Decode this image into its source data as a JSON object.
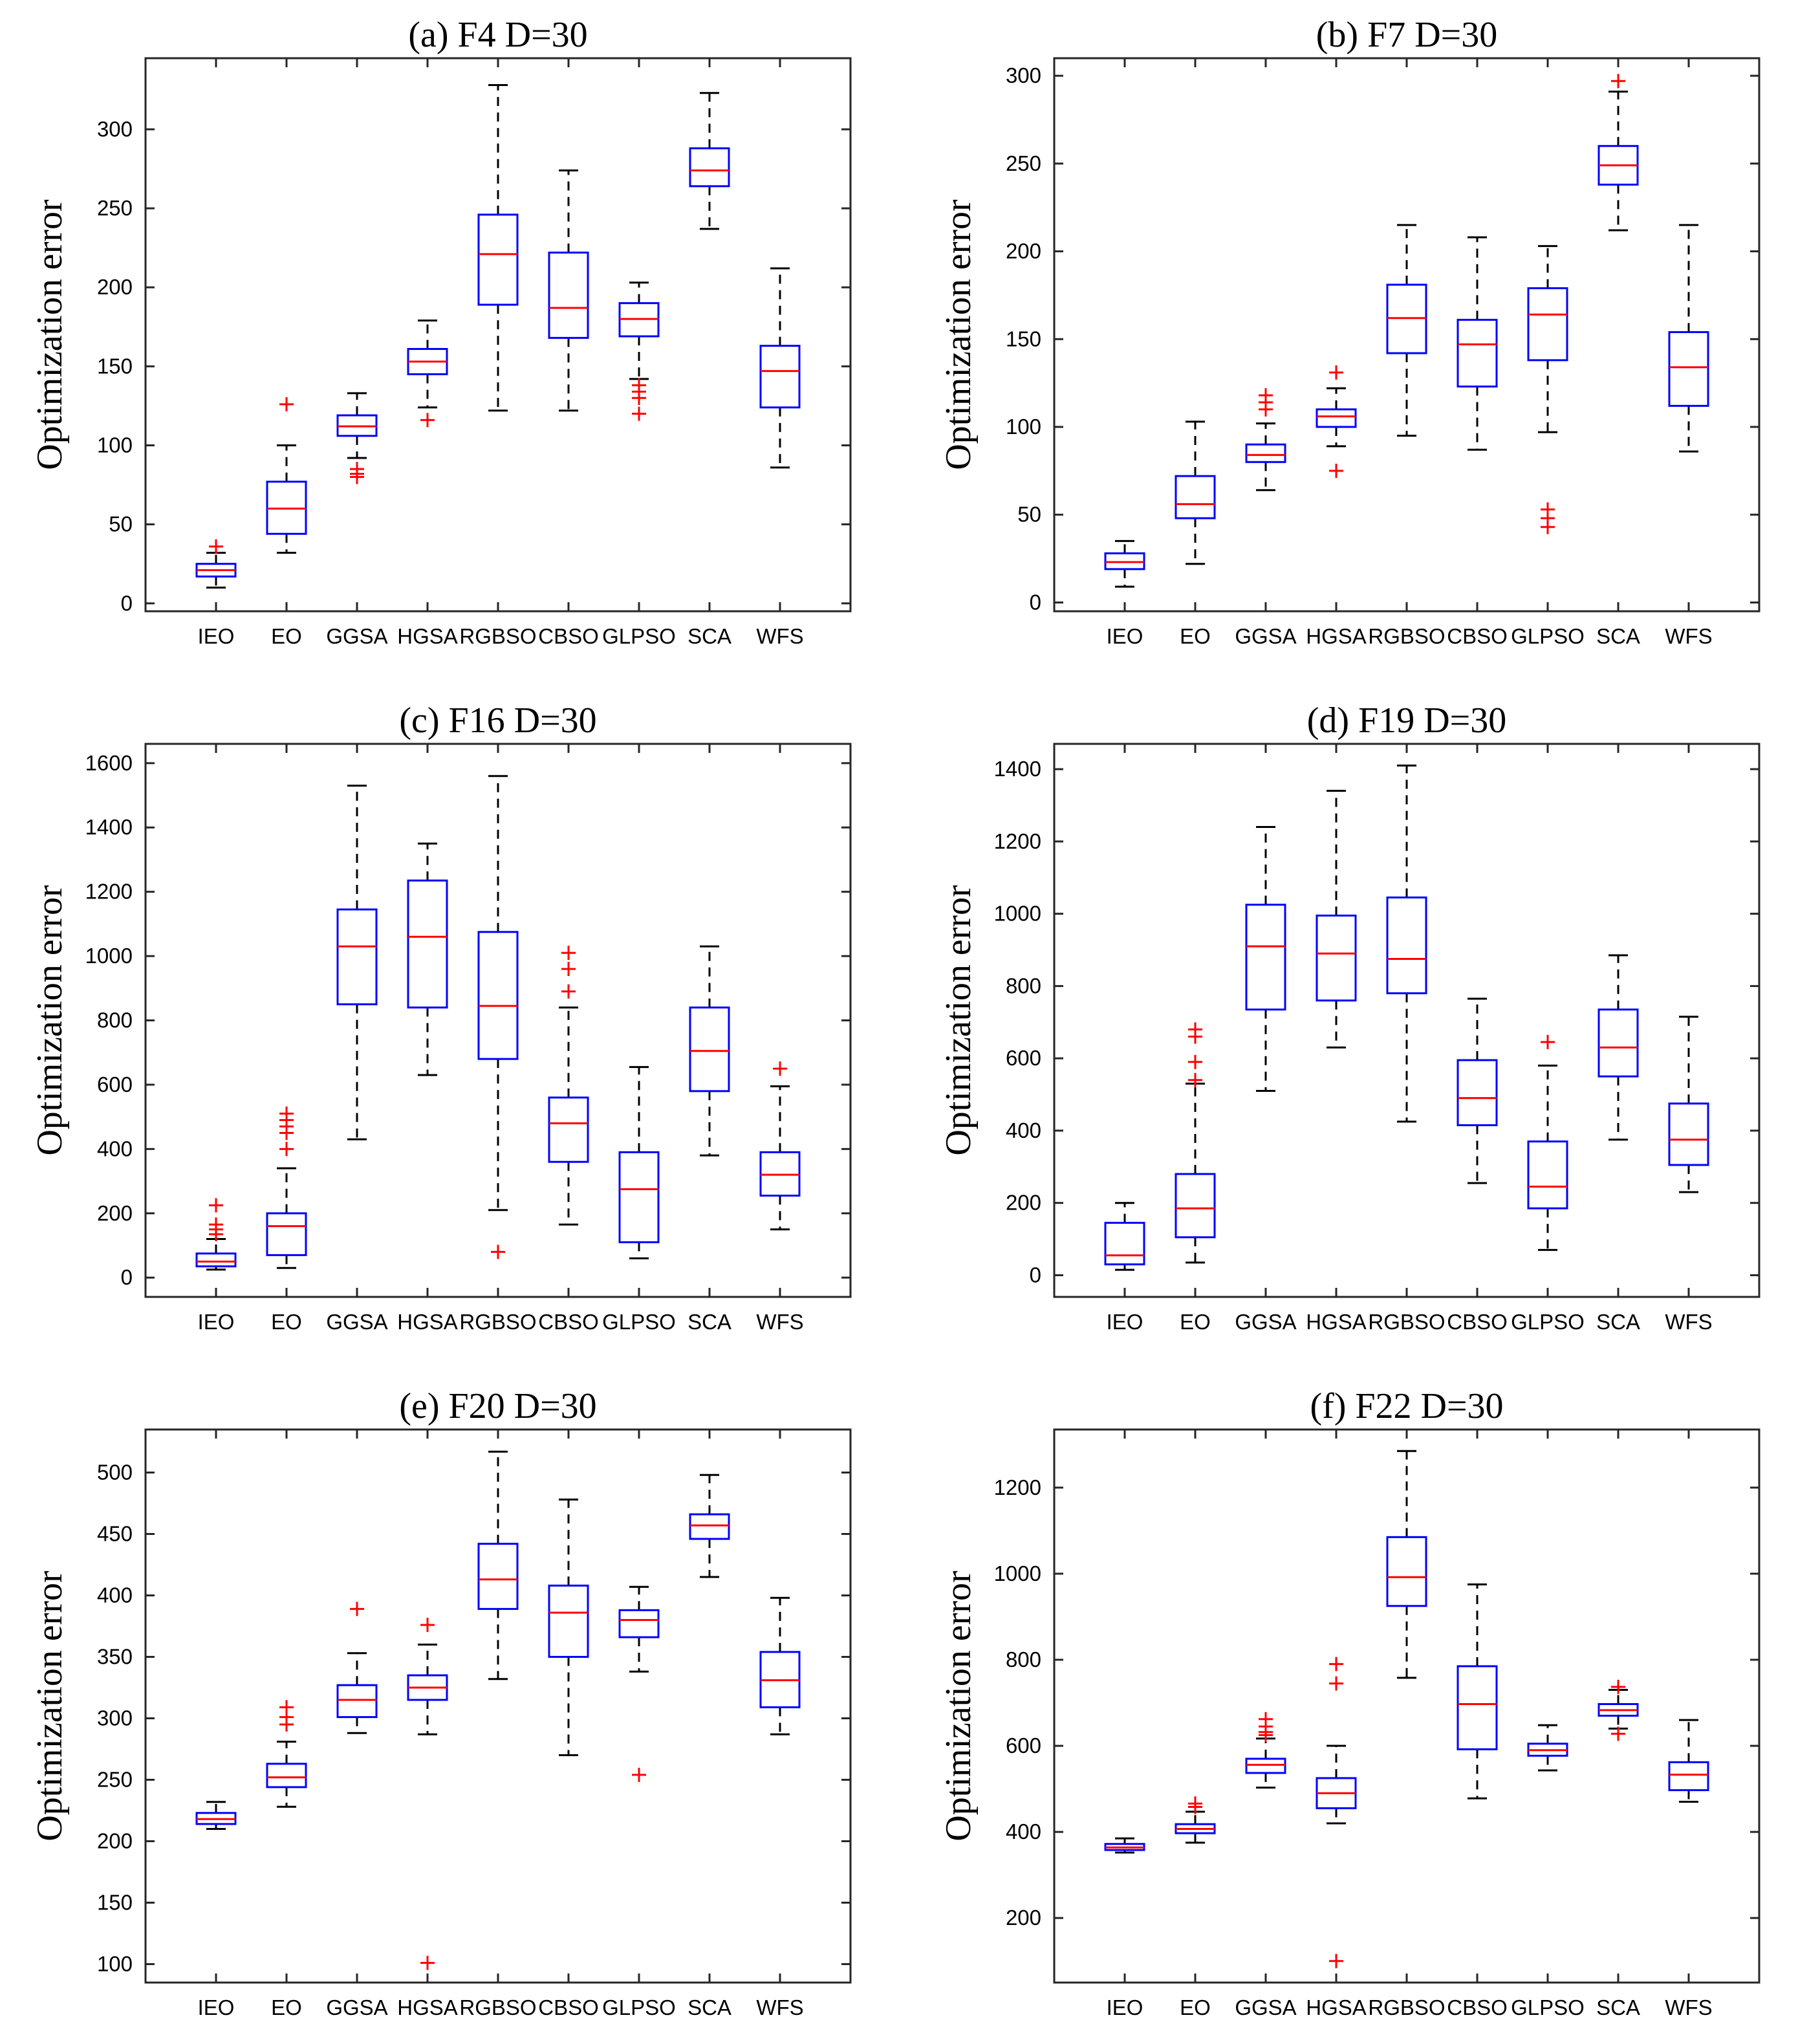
{
  "chart_data": [
    {
      "type": "boxplot",
      "title": "(a)  F4 D=30",
      "ylabel": "Optimization error",
      "xlabel": "",
      "ylim": [
        -5,
        345
      ],
      "yticks": [
        0,
        50,
        100,
        150,
        200,
        250,
        300
      ],
      "categories": [
        "IEO",
        "EO",
        "GGSA",
        "HGSA",
        "RGBSO",
        "CBSO",
        "GLPSO",
        "SCA",
        "WFS"
      ],
      "boxes": [
        {
          "min": 10,
          "q1": 17,
          "median": 21,
          "q3": 25,
          "max": 32,
          "outliers": [
            36
          ]
        },
        {
          "min": 32,
          "q1": 44,
          "median": 60,
          "q3": 77,
          "max": 100,
          "outliers": [
            126
          ]
        },
        {
          "min": 92,
          "q1": 106,
          "median": 112,
          "q3": 119,
          "max": 133,
          "outliers": [
            80,
            82,
            85
          ]
        },
        {
          "min": 124,
          "q1": 145,
          "median": 153,
          "q3": 161,
          "max": 179,
          "outliers": [
            116
          ]
        },
        {
          "min": 122,
          "q1": 189,
          "median": 221,
          "q3": 246,
          "max": 328,
          "outliers": []
        },
        {
          "min": 122,
          "q1": 168,
          "median": 187,
          "q3": 222,
          "max": 274,
          "outliers": []
        },
        {
          "min": 142,
          "q1": 169,
          "median": 180,
          "q3": 190,
          "max": 203,
          "outliers": [
            120,
            130,
            134,
            138
          ]
        },
        {
          "min": 237,
          "q1": 264,
          "median": 274,
          "q3": 288,
          "max": 323,
          "outliers": []
        },
        {
          "min": 86,
          "q1": 124,
          "median": 147,
          "q3": 163,
          "max": 212,
          "outliers": []
        }
      ]
    },
    {
      "type": "boxplot",
      "title": "(b)  F7 D=30",
      "ylabel": "Optimization error",
      "xlabel": "",
      "ylim": [
        -5,
        310
      ],
      "yticks": [
        0,
        50,
        100,
        150,
        200,
        250,
        300
      ],
      "categories": [
        "IEO",
        "EO",
        "GGSA",
        "HGSA",
        "RGBSO",
        "CBSO",
        "GLPSO",
        "SCA",
        "WFS"
      ],
      "boxes": [
        {
          "min": 9,
          "q1": 19,
          "median": 23,
          "q3": 28,
          "max": 35,
          "outliers": []
        },
        {
          "min": 22,
          "q1": 48,
          "median": 56,
          "q3": 72,
          "max": 103,
          "outliers": []
        },
        {
          "min": 64,
          "q1": 80,
          "median": 84,
          "q3": 90,
          "max": 102,
          "outliers": [
            110,
            114,
            118
          ]
        },
        {
          "min": 89,
          "q1": 100,
          "median": 106,
          "q3": 110,
          "max": 122,
          "outliers": [
            75,
            131
          ]
        },
        {
          "min": 95,
          "q1": 142,
          "median": 162,
          "q3": 181,
          "max": 215,
          "outliers": []
        },
        {
          "min": 87,
          "q1": 123,
          "median": 147,
          "q3": 161,
          "max": 208,
          "outliers": []
        },
        {
          "min": 97,
          "q1": 138,
          "median": 164,
          "q3": 179,
          "max": 203,
          "outliers": [
            43,
            48,
            53
          ]
        },
        {
          "min": 212,
          "q1": 238,
          "median": 249,
          "q3": 260,
          "max": 291,
          "outliers": [
            297
          ]
        },
        {
          "min": 86,
          "q1": 112,
          "median": 134,
          "q3": 154,
          "max": 215,
          "outliers": []
        }
      ]
    },
    {
      "type": "boxplot",
      "title": "(c)  F16 D=30",
      "ylabel": "Optimization error",
      "xlabel": "",
      "ylim": [
        -60,
        1660
      ],
      "yticks": [
        0,
        200,
        400,
        600,
        800,
        1000,
        1200,
        1400,
        1600
      ],
      "categories": [
        "IEO",
        "EO",
        "GGSA",
        "HGSA",
        "RGBSO",
        "CBSO",
        "GLPSO",
        "SCA",
        "WFS"
      ],
      "boxes": [
        {
          "min": 25,
          "q1": 35,
          "median": 50,
          "q3": 75,
          "max": 120,
          "outliers": [
            135,
            150,
            165,
            225
          ]
        },
        {
          "min": 30,
          "q1": 70,
          "median": 160,
          "q3": 200,
          "max": 340,
          "outliers": [
            400,
            450,
            470,
            490,
            510
          ]
        },
        {
          "min": 430,
          "q1": 850,
          "median": 1030,
          "q3": 1145,
          "max": 1530,
          "outliers": []
        },
        {
          "min": 630,
          "q1": 840,
          "median": 1060,
          "q3": 1235,
          "max": 1350,
          "outliers": []
        },
        {
          "min": 210,
          "q1": 680,
          "median": 845,
          "q3": 1075,
          "max": 1560,
          "outliers": [
            80
          ]
        },
        {
          "min": 165,
          "q1": 360,
          "median": 480,
          "q3": 560,
          "max": 840,
          "outliers": [
            890,
            960,
            1010
          ]
        },
        {
          "min": 60,
          "q1": 110,
          "median": 275,
          "q3": 390,
          "max": 655,
          "outliers": []
        },
        {
          "min": 380,
          "q1": 580,
          "median": 705,
          "q3": 840,
          "max": 1030,
          "outliers": []
        },
        {
          "min": 150,
          "q1": 255,
          "median": 320,
          "q3": 390,
          "max": 595,
          "outliers": [
            650
          ]
        }
      ]
    },
    {
      "type": "boxplot",
      "title": "(d)  F19 D=30",
      "ylabel": "Optimization error",
      "xlabel": "",
      "ylim": [
        -60,
        1470
      ],
      "yticks": [
        0,
        200,
        400,
        600,
        800,
        1000,
        1200,
        1400
      ],
      "categories": [
        "IEO",
        "EO",
        "GGSA",
        "HGSA",
        "RGBSO",
        "CBSO",
        "GLPSO",
        "SCA",
        "WFS"
      ],
      "boxes": [
        {
          "min": 15,
          "q1": 30,
          "median": 55,
          "q3": 145,
          "max": 200,
          "outliers": []
        },
        {
          "min": 35,
          "q1": 105,
          "median": 185,
          "q3": 280,
          "max": 530,
          "outliers": [
            540,
            590,
            660,
            680
          ]
        },
        {
          "min": 510,
          "q1": 735,
          "median": 910,
          "q3": 1025,
          "max": 1240,
          "outliers": []
        },
        {
          "min": 630,
          "q1": 760,
          "median": 890,
          "q3": 995,
          "max": 1340,
          "outliers": []
        },
        {
          "min": 425,
          "q1": 780,
          "median": 875,
          "q3": 1045,
          "max": 1410,
          "outliers": []
        },
        {
          "min": 255,
          "q1": 415,
          "median": 490,
          "q3": 595,
          "max": 765,
          "outliers": []
        },
        {
          "min": 70,
          "q1": 185,
          "median": 245,
          "q3": 370,
          "max": 580,
          "outliers": [
            645
          ]
        },
        {
          "min": 375,
          "q1": 550,
          "median": 630,
          "q3": 735,
          "max": 885,
          "outliers": []
        },
        {
          "min": 230,
          "q1": 305,
          "median": 375,
          "q3": 475,
          "max": 715,
          "outliers": []
        }
      ]
    },
    {
      "type": "boxplot",
      "title": "(e)  F20 D=30",
      "ylabel": "Optimization error",
      "xlabel": "",
      "ylim": [
        85,
        535
      ],
      "yticks": [
        100,
        150,
        200,
        250,
        300,
        350,
        400,
        450,
        500
      ],
      "categories": [
        "IEO",
        "EO",
        "GGSA",
        "HGSA",
        "RGBSO",
        "CBSO",
        "GLPSO",
        "SCA",
        "WFS"
      ],
      "boxes": [
        {
          "min": 210,
          "q1": 214,
          "median": 218,
          "q3": 223,
          "max": 232,
          "outliers": []
        },
        {
          "min": 228,
          "q1": 244,
          "median": 252,
          "q3": 263,
          "max": 281,
          "outliers": [
            295,
            301,
            309
          ]
        },
        {
          "min": 288,
          "q1": 301,
          "median": 315,
          "q3": 327,
          "max": 353,
          "outliers": [
            389
          ]
        },
        {
          "min": 287,
          "q1": 315,
          "median": 325,
          "q3": 335,
          "max": 360,
          "outliers": [
            101,
            376
          ]
        },
        {
          "min": 332,
          "q1": 389,
          "median": 413,
          "q3": 442,
          "max": 517,
          "outliers": []
        },
        {
          "min": 270,
          "q1": 350,
          "median": 386,
          "q3": 408,
          "max": 478,
          "outliers": []
        },
        {
          "min": 338,
          "q1": 366,
          "median": 380,
          "q3": 388,
          "max": 407,
          "outliers": [
            254
          ]
        },
        {
          "min": 415,
          "q1": 446,
          "median": 457,
          "q3": 466,
          "max": 498,
          "outliers": []
        },
        {
          "min": 287,
          "q1": 309,
          "median": 331,
          "q3": 354,
          "max": 398,
          "outliers": []
        }
      ]
    },
    {
      "type": "boxplot",
      "title": "(f)  F22 D=30",
      "ylabel": "Optimization error",
      "xlabel": "",
      "ylim": [
        50,
        1335
      ],
      "yticks": [
        200,
        400,
        600,
        800,
        1000,
        1200
      ],
      "categories": [
        "IEO",
        "EO",
        "GGSA",
        "HGSA",
        "RGBSO",
        "CBSO",
        "GLPSO",
        "SCA",
        "WFS"
      ],
      "boxes": [
        {
          "min": 352,
          "q1": 358,
          "median": 364,
          "q3": 372,
          "max": 385,
          "outliers": []
        },
        {
          "min": 375,
          "q1": 397,
          "median": 407,
          "q3": 418,
          "max": 447,
          "outliers": [
            458,
            466
          ]
        },
        {
          "min": 503,
          "q1": 537,
          "median": 556,
          "q3": 570,
          "max": 617,
          "outliers": [
            625,
            632,
            645,
            662
          ]
        },
        {
          "min": 420,
          "q1": 455,
          "median": 490,
          "q3": 525,
          "max": 600,
          "outliers": [
            100,
            745,
            790
          ]
        },
        {
          "min": 758,
          "q1": 925,
          "median": 992,
          "q3": 1085,
          "max": 1285,
          "outliers": []
        },
        {
          "min": 478,
          "q1": 592,
          "median": 697,
          "q3": 785,
          "max": 975,
          "outliers": []
        },
        {
          "min": 543,
          "q1": 577,
          "median": 590,
          "q3": 605,
          "max": 648,
          "outliers": []
        },
        {
          "min": 640,
          "q1": 670,
          "median": 683,
          "q3": 697,
          "max": 730,
          "outliers": [
            628,
            737
          ]
        },
        {
          "min": 470,
          "q1": 497,
          "median": 533,
          "q3": 562,
          "max": 660,
          "outliers": []
        }
      ]
    }
  ]
}
